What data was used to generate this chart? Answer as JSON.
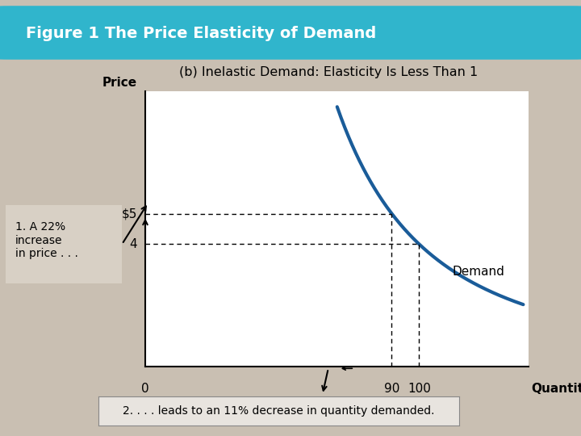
{
  "figure_title": "Figure 1 The Price Elasticity of Demand",
  "subtitle": "(b) Inelastic Demand: Elasticity Is Less Than 1",
  "ylabel": "Price",
  "xlabel": "Quantity",
  "bg_color": "#c9bfb2",
  "header_color": "#30b5cc",
  "plot_bg": "#ffffff",
  "curve_color": "#1a5c99",
  "annotation1_bg": "#d8d0c5",
  "price_labels": [
    "4",
    "$5"
  ],
  "ylim": [
    0,
    9
  ],
  "xlim": [
    0,
    140
  ],
  "annotation1": "1. A 22%\nincrease\nin price . . .",
  "annotation2": "2. . . . leads to an 11% decrease in quantity demanded.",
  "demand_label": "Demand",
  "p1": 4,
  "p2": 5,
  "q1": 100,
  "q2": 90
}
